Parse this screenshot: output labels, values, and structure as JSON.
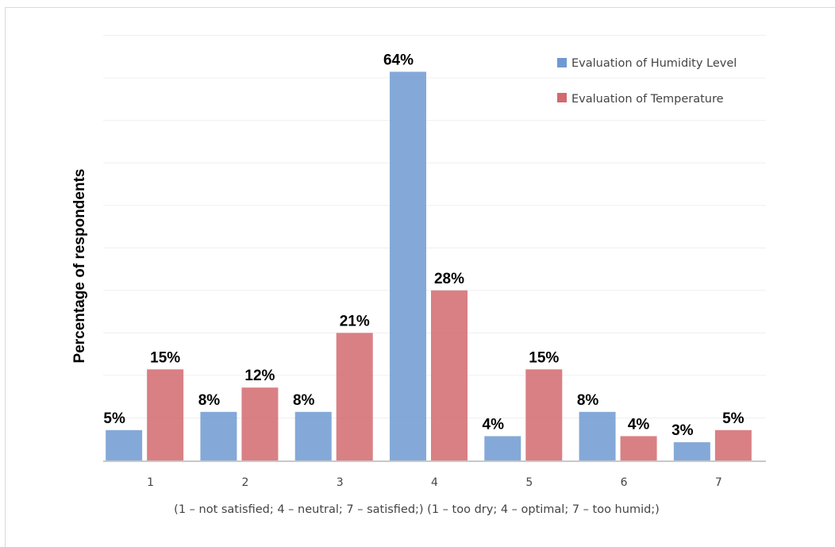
{
  "chart_data": {
    "type": "bar",
    "title": "",
    "ylabel": "Percentage of respondents",
    "xlabel": "(1 – not satisfied; 4 – neutral; 7 – satisfied;) (1 – too dry; 4 – optimal; 7 – too humid;)",
    "categories": [
      "1",
      "2",
      "3",
      "4",
      "5",
      "6",
      "7"
    ],
    "series": [
      {
        "name": "Evaluation of Humidity Level",
        "color": "#6f9ad1",
        "values": [
          5,
          8,
          8,
          64,
          4,
          8,
          3
        ],
        "labels": [
          "5%",
          "8%",
          "8%",
          "64%",
          "4%",
          "8%",
          "3%"
        ]
      },
      {
        "name": "Evaluation of Temperature",
        "color": "#d26a6e",
        "values": [
          15,
          12,
          21,
          28,
          15,
          4,
          5
        ],
        "labels": [
          "15%",
          "12%",
          "21%",
          "28%",
          "15%",
          "4%",
          "5%"
        ]
      }
    ],
    "ylim": [
      0,
      70
    ],
    "grid": true,
    "legend": "top-right"
  }
}
